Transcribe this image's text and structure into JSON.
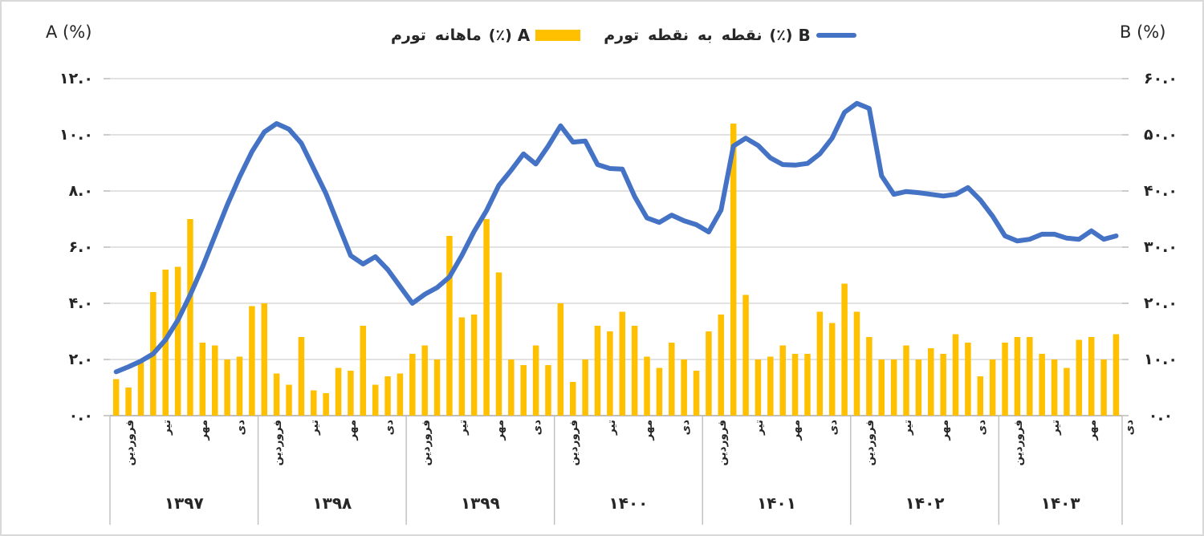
{
  "axes": {
    "left_title": "A (%)",
    "right_title": "B (%)",
    "left_ticks": [
      "۱۲.۰",
      "۱۰.۰",
      "۸.۰",
      "۶.۰",
      "۴.۰",
      "۲.۰",
      "۰.۰"
    ],
    "right_ticks": [
      "۶۰.۰",
      "۵۰.۰",
      "۴۰.۰",
      "۳۰.۰",
      "۲۰.۰",
      "۱۰.۰",
      "۰.۰"
    ],
    "month_labels": [
      "فروردین",
      "تیر",
      "مهر",
      "دی"
    ],
    "year_labels": [
      "۱۳۹۷",
      "۱۳۹۸",
      "۱۳۹۹",
      "۱۴۰۰",
      "۱۴۰۱",
      "۱۴۰۲",
      "۱۴۰۳"
    ]
  },
  "legend": {
    "items": [
      {
        "label": "تورم ماهانه A(٪)",
        "words": [
          "تورم",
          "ماهانه"
        ],
        "suffix": "(٪)",
        "letter": "A",
        "swatch": "bar",
        "color": "#FFC000"
      },
      {
        "label": "تورم نقطه به نقطه B(٪)",
        "words": [
          "تورم",
          "نقطه",
          "به",
          "نقطه"
        ],
        "suffix": "(٪)",
        "letter": "B",
        "swatch": "line",
        "color": "#4472C4"
      }
    ]
  },
  "colors": {
    "bar": "#FFC000",
    "line": "#4472C4",
    "gridline": "#D9D9D9",
    "axis": "#BFBFBF",
    "text": "#262626"
  },
  "chart_data": {
    "type": "bar+line",
    "title": "",
    "grid": "horizontal",
    "legend_position": "top-center",
    "x_structure": [
      {
        "year": "۱۳۹۷",
        "months": 12
      },
      {
        "year": "۱۳۹۸",
        "months": 12
      },
      {
        "year": "۱۳۹۹",
        "months": 12
      },
      {
        "year": "۱۴۰۰",
        "months": 12
      },
      {
        "year": "۱۴۰۱",
        "months": 12
      },
      {
        "year": "۱۴۰۲",
        "months": 12
      },
      {
        "year": "۱۴۰۳",
        "months": 10
      }
    ],
    "labeled_month_indices": [
      0,
      3,
      6,
      9
    ],
    "series": [
      {
        "name": "تورم ماهانه A(٪)",
        "type": "bar",
        "axis": "left",
        "axis_label": "A (%)",
        "ylim": [
          0,
          12
        ],
        "color": "#FFC000",
        "values": [
          1.3,
          1.0,
          1.9,
          4.4,
          5.2,
          5.3,
          7.0,
          2.6,
          2.5,
          2.0,
          2.1,
          3.9,
          4.0,
          1.5,
          1.1,
          2.8,
          0.9,
          0.8,
          1.7,
          1.6,
          3.2,
          1.1,
          1.4,
          1.5,
          2.2,
          2.5,
          2.0,
          6.4,
          3.5,
          3.6,
          7.0,
          5.1,
          2.0,
          1.8,
          2.5,
          1.8,
          4.0,
          1.2,
          2.0,
          3.2,
          3.0,
          3.7,
          3.2,
          2.1,
          1.7,
          2.6,
          2.0,
          1.6,
          3.0,
          3.6,
          10.4,
          4.3,
          2.0,
          2.1,
          2.5,
          2.2,
          2.2,
          3.7,
          3.3,
          4.7,
          3.7,
          2.8,
          2.0,
          2.0,
          2.5,
          2.0,
          2.4,
          2.2,
          2.9,
          2.6,
          1.4,
          2.0,
          2.6,
          2.8,
          2.8,
          2.2,
          2.0,
          1.7,
          2.7,
          2.8,
          2.0,
          2.9
        ]
      },
      {
        "name": "تورم نقطه به نقطه B(٪)",
        "type": "line",
        "axis": "right",
        "axis_label": "B (%)",
        "ylim": [
          0,
          60
        ],
        "color": "#4472C4",
        "values": [
          7.8,
          8.7,
          9.7,
          11.0,
          13.5,
          17.0,
          21.5,
          26.5,
          32.0,
          37.5,
          42.5,
          47.0,
          50.5,
          52.0,
          51.0,
          48.5,
          44.0,
          39.5,
          34.0,
          28.5,
          27.0,
          28.3,
          26.0,
          23.0,
          20.0,
          21.6,
          22.8,
          24.7,
          28.5,
          32.8,
          36.5,
          41.0,
          43.7,
          46.6,
          44.8,
          48.0,
          51.6,
          48.7,
          48.9,
          44.7,
          44.0,
          43.9,
          39.0,
          35.2,
          34.4,
          35.7,
          34.7,
          34.0,
          32.7,
          36.6,
          48.0,
          49.4,
          48.1,
          45.9,
          44.7,
          44.6,
          44.9,
          46.6,
          49.4,
          54.0,
          55.6,
          54.7,
          42.7,
          39.4,
          39.9,
          39.7,
          39.4,
          39.1,
          39.4,
          40.6,
          38.4,
          35.5,
          32.0,
          31.1,
          31.4,
          32.3,
          32.3,
          31.6,
          31.4,
          32.9,
          31.4,
          32.0
        ]
      }
    ]
  }
}
